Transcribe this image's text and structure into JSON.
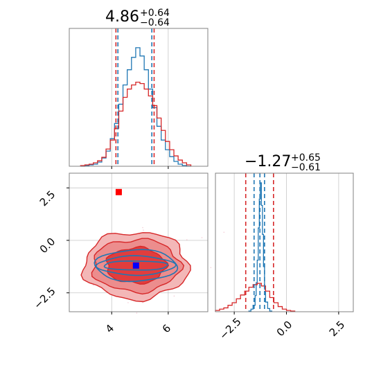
{
  "chart_data": [
    {
      "type": "histogram",
      "panel": "top-left",
      "title_value": "4.86",
      "title_plus": "+0.64",
      "title_minus": "−0.64",
      "xlim": [
        2.5,
        7.4
      ],
      "grid": true,
      "series": [
        {
          "color": "#1f77b4",
          "bins": [
            2.9,
            3.05,
            3.2,
            3.35,
            3.5,
            3.65,
            3.8,
            3.95,
            4.1,
            4.25,
            4.4,
            4.55,
            4.7,
            4.85,
            5.0,
            5.15,
            5.3,
            5.45,
            5.6,
            5.75,
            5.9,
            6.05,
            6.2,
            6.35,
            6.5,
            6.65,
            6.8
          ],
          "values": [
            0,
            1,
            2,
            3,
            6,
            12,
            22,
            40,
            62,
            90,
            118,
            140,
            158,
            172,
            160,
            140,
            112,
            85,
            58,
            38,
            24,
            14,
            7,
            3,
            1,
            0
          ]
        },
        {
          "color": "#d62728",
          "bins": [
            2.9,
            3.05,
            3.2,
            3.35,
            3.5,
            3.65,
            3.8,
            3.95,
            4.1,
            4.25,
            4.4,
            4.55,
            4.7,
            4.85,
            5.0,
            5.15,
            5.3,
            5.45,
            5.6,
            5.75,
            5.9,
            6.05,
            6.2,
            6.35,
            6.5,
            6.65,
            6.8
          ],
          "values": [
            1,
            2,
            3,
            5,
            8,
            13,
            25,
            38,
            55,
            80,
            100,
            112,
            118,
            122,
            120,
            112,
            102,
            88,
            70,
            52,
            36,
            24,
            15,
            9,
            5,
            2
          ]
        }
      ],
      "quantile_lines": [
        {
          "x": 4.22,
          "color": "#1f77b4"
        },
        {
          "x": 5.42,
          "color": "#1f77b4"
        },
        {
          "x": 4.15,
          "color": "#d62728"
        },
        {
          "x": 5.5,
          "color": "#d62728"
        }
      ]
    },
    {
      "type": "contour-scatter",
      "panel": "bottom-left",
      "xlim": [
        2.5,
        7.4
      ],
      "ylim": [
        -3.4,
        3.2
      ],
      "xticks": [
        "4",
        "6"
      ],
      "yticks": [
        "2.5",
        "0.0",
        "−2.5"
      ],
      "grid": true,
      "markers": [
        {
          "x": 4.25,
          "y": 2.3,
          "color": "#ff0000",
          "shape": "square"
        },
        {
          "x": 4.86,
          "y": -1.2,
          "color": "#0000ff",
          "shape": "square"
        }
      ],
      "red_contours": [
        {
          "rx": 1.85,
          "ry": 1.6,
          "fill": "#f3b7b7"
        },
        {
          "rx": 1.55,
          "ry": 1.25,
          "fill": "#ec8d8d"
        },
        {
          "rx": 1.05,
          "ry": 0.85,
          "fill": "#e13d3d"
        }
      ],
      "red_center": {
        "x": 4.86,
        "y": -1.2
      },
      "blue_contours": [
        {
          "rx": 1.45,
          "ry": 0.75
        },
        {
          "rx": 1.35,
          "ry": 0.45
        },
        {
          "rx": 1.15,
          "ry": 0.22
        }
      ],
      "blue_center": {
        "x": 4.86,
        "y": -1.2
      }
    },
    {
      "type": "histogram",
      "panel": "bottom-right",
      "title_value": "−1.27",
      "title_plus": "+0.65",
      "title_minus": "−0.61",
      "xlim": [
        -3.4,
        3.2
      ],
      "xticks": [
        "−2.5",
        "0.0",
        "2.5"
      ],
      "grid": true,
      "series": [
        {
          "color": "#1f77b4",
          "bins": [
            -1.8,
            -1.7,
            -1.6,
            -1.5,
            -1.45,
            -1.4,
            -1.35,
            -1.3,
            -1.25,
            -1.2,
            -1.15,
            -1.1,
            -1.05,
            -1.0,
            -0.9,
            -0.8,
            -0.7
          ],
          "values": [
            1,
            4,
            10,
            25,
            45,
            80,
            130,
            175,
            200,
            165,
            120,
            70,
            35,
            15,
            5,
            1
          ]
        },
        {
          "color": "#d62728",
          "bins": [
            -3.4,
            -3.2,
            -3.0,
            -2.8,
            -2.6,
            -2.4,
            -2.2,
            -2.0,
            -1.8,
            -1.6,
            -1.4,
            -1.2,
            -1.0,
            -0.8,
            -0.6,
            -0.4,
            -0.2,
            0.0,
            0.2,
            0.4
          ],
          "values": [
            2,
            4,
            6,
            10,
            14,
            20,
            26,
            32,
            38,
            42,
            44,
            40,
            32,
            22,
            14,
            8,
            4,
            2,
            1
          ]
        }
      ],
      "quantile_lines": [
        {
          "x": -1.55,
          "color": "#1f77b4"
        },
        {
          "x": -1.05,
          "color": "#1f77b4"
        },
        {
          "x": -1.95,
          "color": "#d62728"
        },
        {
          "x": -0.62,
          "color": "#d62728"
        }
      ],
      "center_lines": [
        {
          "x": -1.27,
          "color": "#1f77b4"
        }
      ]
    }
  ]
}
